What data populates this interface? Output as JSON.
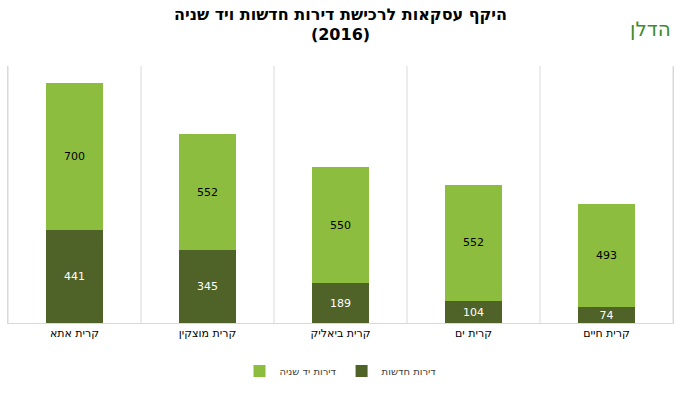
{
  "chart_data": {
    "type": "bar",
    "title": "היקף עסקאות לרכישת דירות חדשות ויד שניה",
    "subtitle": "(2016)",
    "annotations": [
      "הדלן"
    ],
    "categories": [
      "קרית אתא",
      "קרית מוצקין",
      "קרית ביאליק",
      "קרית ים",
      "קרית חיים"
    ],
    "series": [
      {
        "name": "דירות חדשות",
        "color": "#4f6228",
        "values": [
          441,
          345,
          189,
          104,
          74
        ]
      },
      {
        "name": "דירות יד שניה",
        "color": "#8cbd3f",
        "values": [
          700,
          552,
          550,
          552,
          493
        ]
      }
    ],
    "stacked": true,
    "data_labels": true,
    "tick_labels": "x",
    "ylim": [
      0,
      1220
    ],
    "grid": false,
    "legend": "bottom"
  }
}
